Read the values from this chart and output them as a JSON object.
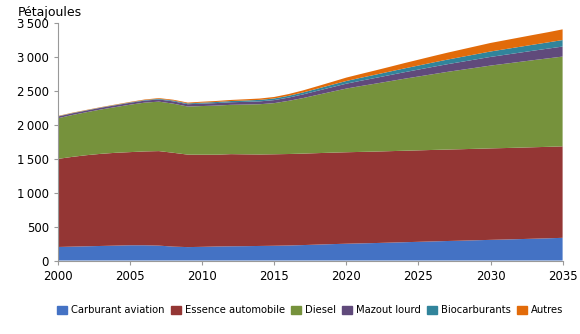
{
  "years": [
    2000,
    2001,
    2002,
    2003,
    2004,
    2005,
    2006,
    2007,
    2008,
    2009,
    2010,
    2011,
    2012,
    2013,
    2014,
    2015,
    2016,
    2017,
    2018,
    2019,
    2020,
    2021,
    2022,
    2023,
    2024,
    2025,
    2026,
    2027,
    2028,
    2029,
    2030,
    2031,
    2032,
    2033,
    2034,
    2035
  ],
  "carburant_aviation": [
    200,
    205,
    210,
    215,
    220,
    225,
    225,
    220,
    205,
    198,
    202,
    207,
    210,
    212,
    215,
    218,
    222,
    228,
    235,
    242,
    248,
    253,
    258,
    264,
    270,
    276,
    282,
    288,
    293,
    299,
    305,
    310,
    316,
    322,
    328,
    335
  ],
  "essence_automobile": [
    1300,
    1325,
    1345,
    1360,
    1370,
    1375,
    1385,
    1395,
    1385,
    1365,
    1360,
    1355,
    1360,
    1355,
    1350,
    1350,
    1350,
    1350,
    1350,
    1350,
    1350,
    1350,
    1350,
    1350,
    1350,
    1350,
    1350,
    1350,
    1350,
    1350,
    1350,
    1350,
    1350,
    1350,
    1350,
    1350
  ],
  "diesel": [
    600,
    618,
    635,
    655,
    675,
    700,
    720,
    730,
    725,
    710,
    718,
    725,
    728,
    735,
    742,
    755,
    785,
    820,
    860,
    900,
    940,
    972,
    1002,
    1032,
    1062,
    1090,
    1118,
    1146,
    1172,
    1197,
    1222,
    1244,
    1265,
    1286,
    1306,
    1325
  ],
  "mazout_lourd": [
    25,
    25,
    25,
    26,
    27,
    28,
    30,
    32,
    34,
    34,
    36,
    37,
    38,
    40,
    42,
    45,
    48,
    54,
    60,
    66,
    72,
    78,
    84,
    90,
    96,
    102,
    108,
    113,
    118,
    123,
    128,
    132,
    136,
    140,
    144,
    148
  ],
  "biocarburants": [
    4,
    4,
    4,
    4,
    5,
    6,
    8,
    10,
    12,
    12,
    14,
    16,
    18,
    20,
    22,
    24,
    26,
    29,
    32,
    36,
    40,
    44,
    48,
    52,
    56,
    60,
    64,
    68,
    72,
    76,
    80,
    83,
    86,
    89,
    92,
    96
  ],
  "autres": [
    5,
    5,
    5,
    5,
    6,
    7,
    8,
    10,
    12,
    12,
    14,
    15,
    16,
    18,
    20,
    22,
    26,
    30,
    36,
    42,
    50,
    56,
    63,
    70,
    78,
    86,
    94,
    102,
    110,
    118,
    126,
    132,
    138,
    144,
    150,
    158
  ],
  "colors": {
    "carburant_aviation": "#4472c4",
    "essence_automobile": "#943634",
    "diesel": "#76923c",
    "mazout_lourd": "#604a7b",
    "biocarburants": "#31849b",
    "autres": "#e26b0a"
  },
  "labels": [
    "Carburant aviation",
    "Essence automobile",
    "Diesel",
    "Mazout lourd",
    "Biocarburants",
    "Autres"
  ],
  "ylabel": "Pétajoules",
  "ylim": [
    0,
    3500
  ],
  "yticks": [
    0,
    500,
    1000,
    1500,
    2000,
    2500,
    3000,
    3500
  ],
  "xlim": [
    2000,
    2035
  ],
  "xticks": [
    2000,
    2005,
    2010,
    2015,
    2020,
    2025,
    2030,
    2035
  ],
  "figsize": [
    5.8,
    3.34
  ],
  "dpi": 100
}
